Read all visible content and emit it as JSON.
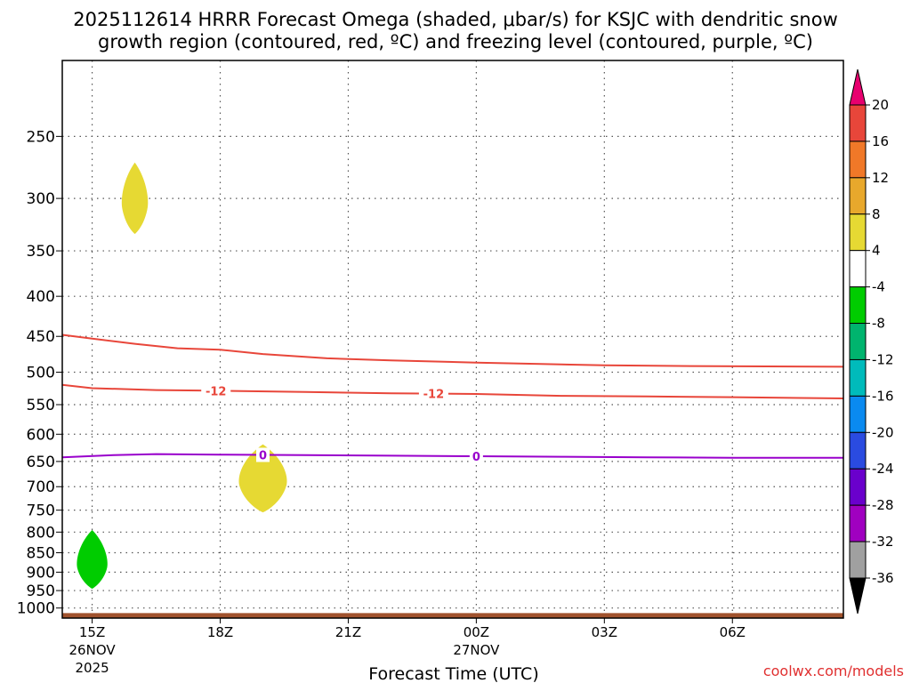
{
  "chart_data": {
    "type": "contour",
    "title_line1": "2025112614 HRRR Forecast Omega (shaded, μbar/s) for KSJC with dendritic snow",
    "title_line2": "growth region (contoured, red, ºC) and freezing level (contoured, purple, ºC)",
    "xlabel": "Forecast Time (UTC)",
    "x_range_hours": [
      14.3,
      32.6
    ],
    "x_ticks": [
      {
        "hour": 15,
        "label": "15Z",
        "sub1": "26NOV",
        "sub2": "2025"
      },
      {
        "hour": 18,
        "label": "18Z",
        "sub1": "",
        "sub2": ""
      },
      {
        "hour": 21,
        "label": "21Z",
        "sub1": "",
        "sub2": ""
      },
      {
        "hour": 24,
        "label": "00Z",
        "sub1": "27NOV",
        "sub2": ""
      },
      {
        "hour": 27,
        "label": "03Z",
        "sub1": "",
        "sub2": ""
      },
      {
        "hour": 30,
        "label": "06Z",
        "sub1": "",
        "sub2": ""
      }
    ],
    "y_ticks": [
      {
        "p": 250,
        "label": "250"
      },
      {
        "p": 300,
        "label": "300"
      },
      {
        "p": 350,
        "label": "350"
      },
      {
        "p": 400,
        "label": "400"
      },
      {
        "p": 450,
        "label": "450"
      },
      {
        "p": 500,
        "label": "500"
      },
      {
        "p": 550,
        "label": "550"
      },
      {
        "p": 600,
        "label": "600"
      },
      {
        "p": 650,
        "label": "650"
      },
      {
        "p": 700,
        "label": "700"
      },
      {
        "p": 750,
        "label": "750"
      },
      {
        "p": 800,
        "label": "800"
      },
      {
        "p": 850,
        "label": "850"
      },
      {
        "p": 900,
        "label": "900"
      },
      {
        "p": 950,
        "label": "950"
      },
      {
        "p": 1000,
        "label": "1000"
      }
    ],
    "y_range_hpa": [
      200,
      1030
    ],
    "omega_blobs": [
      {
        "name": "omega-positive-300",
        "center_hour": 16.0,
        "center_p": 300,
        "half_width_hours": 0.3,
        "p_top": 270,
        "p_bottom": 333,
        "color": "#e6d933",
        "value_range": "4 to 8"
      },
      {
        "name": "omega-positive-680",
        "center_hour": 19.0,
        "center_p": 680,
        "half_width_hours": 0.55,
        "p_top": 618,
        "p_bottom": 755,
        "color": "#e6d933",
        "value_range": "4 to 8"
      },
      {
        "name": "omega-negative-870",
        "center_hour": 15.0,
        "center_p": 870,
        "half_width_hours": 0.35,
        "p_top": 795,
        "p_bottom": 945,
        "color": "#00cc00",
        "value_range": "-8 to -4"
      }
    ],
    "contours": [
      {
        "name": "dgz-upper-contour",
        "color": "#e8463a",
        "label": "",
        "points": [
          [
            14.3,
            448
          ],
          [
            15.0,
            453
          ],
          [
            16.0,
            460
          ],
          [
            17.0,
            466
          ],
          [
            18.0,
            468
          ],
          [
            19.0,
            474
          ],
          [
            20.5,
            480
          ],
          [
            22.0,
            483
          ],
          [
            24.0,
            486
          ],
          [
            25.5,
            488
          ],
          [
            27.0,
            490
          ],
          [
            29.0,
            491
          ],
          [
            32.6,
            492
          ]
        ]
      },
      {
        "name": "dgz-lower-contour",
        "color": "#e8463a",
        "label": "-12",
        "label_hours": [
          17.9,
          23.0
        ],
        "points": [
          [
            14.3,
            519
          ],
          [
            15.0,
            524
          ],
          [
            16.5,
            527
          ],
          [
            18.0,
            528
          ],
          [
            20.0,
            530
          ],
          [
            22.0,
            532
          ],
          [
            24.0,
            533
          ],
          [
            26.0,
            536
          ],
          [
            28.0,
            537
          ],
          [
            30.0,
            538
          ],
          [
            32.6,
            540
          ]
        ]
      },
      {
        "name": "freezing-level-contour",
        "color": "#9900cc",
        "label": "0",
        "label_hours": [
          19.0,
          24.0
        ],
        "points": [
          [
            14.3,
            642
          ],
          [
            15.5,
            638
          ],
          [
            16.5,
            636
          ],
          [
            18.0,
            637
          ],
          [
            20.0,
            638
          ],
          [
            22.0,
            639
          ],
          [
            24.0,
            640
          ],
          [
            26.0,
            641
          ],
          [
            28.0,
            642
          ],
          [
            30.0,
            643
          ],
          [
            32.6,
            643
          ]
        ]
      }
    ],
    "ground": {
      "color": "#a0522d",
      "p_top": 1015
    },
    "colorbar": [
      {
        "color": "#e8006f",
        "label": "20"
      },
      {
        "color": "#e8463a",
        "label": "16"
      },
      {
        "color": "#f07828",
        "label": "12"
      },
      {
        "color": "#e8a82c",
        "label": "8"
      },
      {
        "color": "#e6d933",
        "label": "4"
      },
      {
        "color": "#ffffff",
        "label": "-4"
      },
      {
        "color": "#00cc00",
        "label": "-8"
      },
      {
        "color": "#00b46e",
        "label": "-12"
      },
      {
        "color": "#00bbbb",
        "label": "-16"
      },
      {
        "color": "#0a8af0",
        "label": "-20"
      },
      {
        "color": "#2a4be0",
        "label": "-24"
      },
      {
        "color": "#6a00cc",
        "label": "-28"
      },
      {
        "color": "#a000c0",
        "label": "-32"
      },
      {
        "color": "#a0a0a0",
        "label": "-36"
      },
      {
        "color": "#000000",
        "label": ""
      }
    ],
    "credit": "coolwx.com/models"
  }
}
